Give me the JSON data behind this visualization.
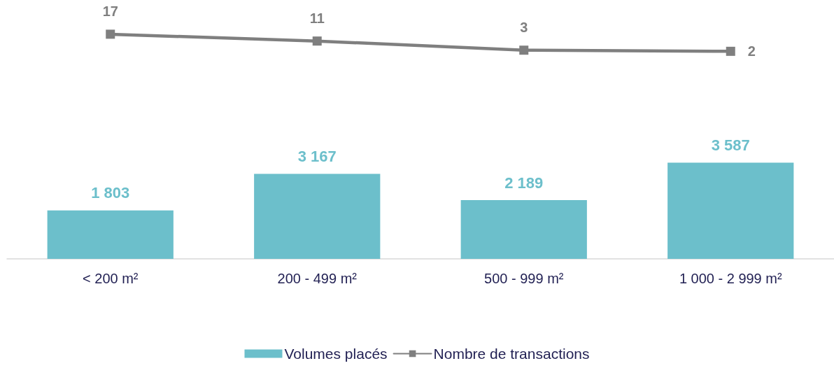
{
  "chart_data": {
    "type": "bar",
    "categories": [
      "< 200 m²",
      "200 - 499 m²",
      "500 - 999 m²",
      "1 000 - 2 999 m²"
    ],
    "series": [
      {
        "name": "Volumes placés",
        "color": "#6cbfcb",
        "values": [
          1803,
          3167,
          2189,
          3587
        ],
        "value_labels": [
          "1 803",
          "3 167",
          "2 189",
          "3 587"
        ]
      },
      {
        "name": "Nombre de transactions",
        "type": "line",
        "axis": "y2",
        "color": "#7f7f7f",
        "marker": "square",
        "values": [
          17,
          11,
          3,
          2
        ],
        "value_labels": [
          "17",
          "11",
          "3",
          "2"
        ]
      }
    ],
    "ylim": [
      0,
      8500
    ],
    "y2lim": [
      -180,
      20
    ],
    "tick_labels": "x",
    "legend": "bottom"
  }
}
